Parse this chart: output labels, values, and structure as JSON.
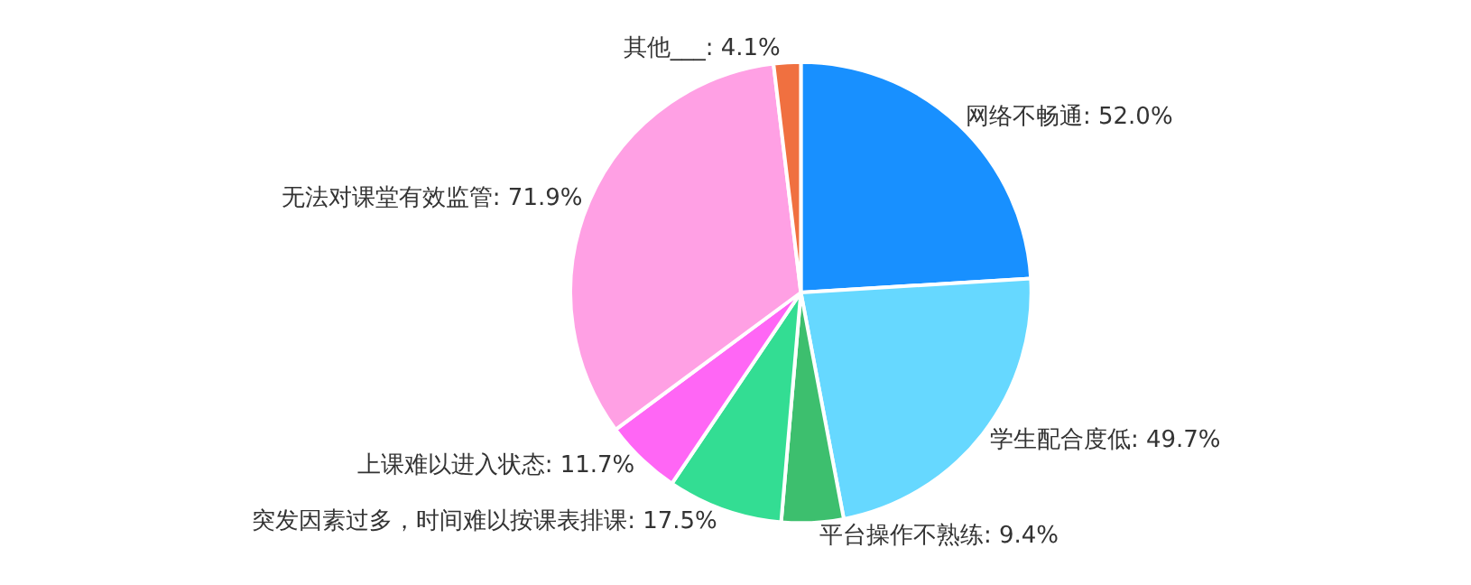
{
  "chart_data": {
    "type": "pie",
    "categories": [
      "网络不畅通",
      "学生配合度低",
      "平台操作不熟练",
      "突发因素过多，时间难以按课表排课",
      "上课难以进入状态",
      "无法对课堂有效监管",
      "其他___"
    ],
    "values": [
      52.0,
      49.7,
      9.4,
      17.5,
      11.7,
      71.9,
      4.1
    ],
    "value_labels": [
      "52.0%",
      "49.7%",
      "9.4%",
      "17.5%",
      "11.7%",
      "71.9%",
      "4.1%"
    ],
    "colors": [
      "#1890ff",
      "#66d8ff",
      "#3dbf6e",
      "#33dd93",
      "#ff66f5",
      "#ffa0e4",
      "#f07040"
    ],
    "legend": false
  }
}
